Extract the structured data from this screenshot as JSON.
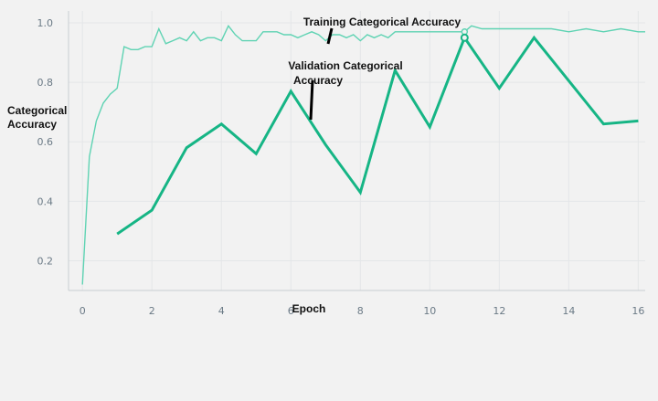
{
  "chart_data": {
    "type": "line",
    "xlabel": "Epoch",
    "ylabel_lines": [
      "Categorical",
      "Accuracy"
    ],
    "xlim": [
      -0.4,
      16.2
    ],
    "ylim": [
      0.1,
      1.04
    ],
    "xticks": [
      0,
      2,
      4,
      6,
      8,
      10,
      12,
      14,
      16
    ],
    "yticks": [
      0.2,
      0.4,
      0.6,
      0.8,
      1.0
    ],
    "grid": true,
    "annotations": [
      {
        "lines": [
          "Training Categorical Accuracy"
        ],
        "target": "training"
      },
      {
        "lines": [
          "Validation Categorical",
          "Accuracy"
        ],
        "target": "validation"
      }
    ],
    "series": [
      {
        "name": "Training Categorical Accuracy",
        "color": "#5fd3b3",
        "x": [
          0,
          0.2,
          0.4,
          0.6,
          0.8,
          1.0,
          1.2,
          1.4,
          1.6,
          1.8,
          2.0,
          2.2,
          2.4,
          2.6,
          2.8,
          3.0,
          3.2,
          3.4,
          3.6,
          3.8,
          4.0,
          4.2,
          4.4,
          4.6,
          4.8,
          5.0,
          5.2,
          5.4,
          5.6,
          5.8,
          6.0,
          6.2,
          6.4,
          6.6,
          6.8,
          7.0,
          7.2,
          7.4,
          7.6,
          7.8,
          8.0,
          8.2,
          8.4,
          8.6,
          8.8,
          9.0,
          9.5,
          10.0,
          10.5,
          11.0,
          11.2,
          11.5,
          12.0,
          12.5,
          13.0,
          13.5,
          14.0,
          14.5,
          15.0,
          15.5,
          16.0,
          16.2
        ],
        "y": [
          0.12,
          0.55,
          0.67,
          0.73,
          0.76,
          0.78,
          0.92,
          0.91,
          0.91,
          0.92,
          0.92,
          0.98,
          0.93,
          0.94,
          0.95,
          0.94,
          0.97,
          0.94,
          0.95,
          0.95,
          0.94,
          0.99,
          0.96,
          0.94,
          0.94,
          0.94,
          0.97,
          0.97,
          0.97,
          0.96,
          0.96,
          0.95,
          0.96,
          0.97,
          0.96,
          0.94,
          0.96,
          0.96,
          0.95,
          0.96,
          0.94,
          0.96,
          0.95,
          0.96,
          0.95,
          0.97,
          0.97,
          0.97,
          0.97,
          0.97,
          0.99,
          0.98,
          0.98,
          0.98,
          0.98,
          0.98,
          0.97,
          0.98,
          0.97,
          0.98,
          0.97,
          0.97
        ]
      },
      {
        "name": "Validation Categorical Accuracy",
        "color": "#16b585",
        "x": [
          1,
          2,
          3,
          4,
          5,
          6,
          7,
          8,
          9,
          10,
          11,
          12,
          13,
          15,
          16
        ],
        "y": [
          0.29,
          0.37,
          0.58,
          0.66,
          0.56,
          0.77,
          0.59,
          0.43,
          0.84,
          0.65,
          0.95,
          0.78,
          0.95,
          0.66,
          0.67
        ]
      }
    ]
  }
}
